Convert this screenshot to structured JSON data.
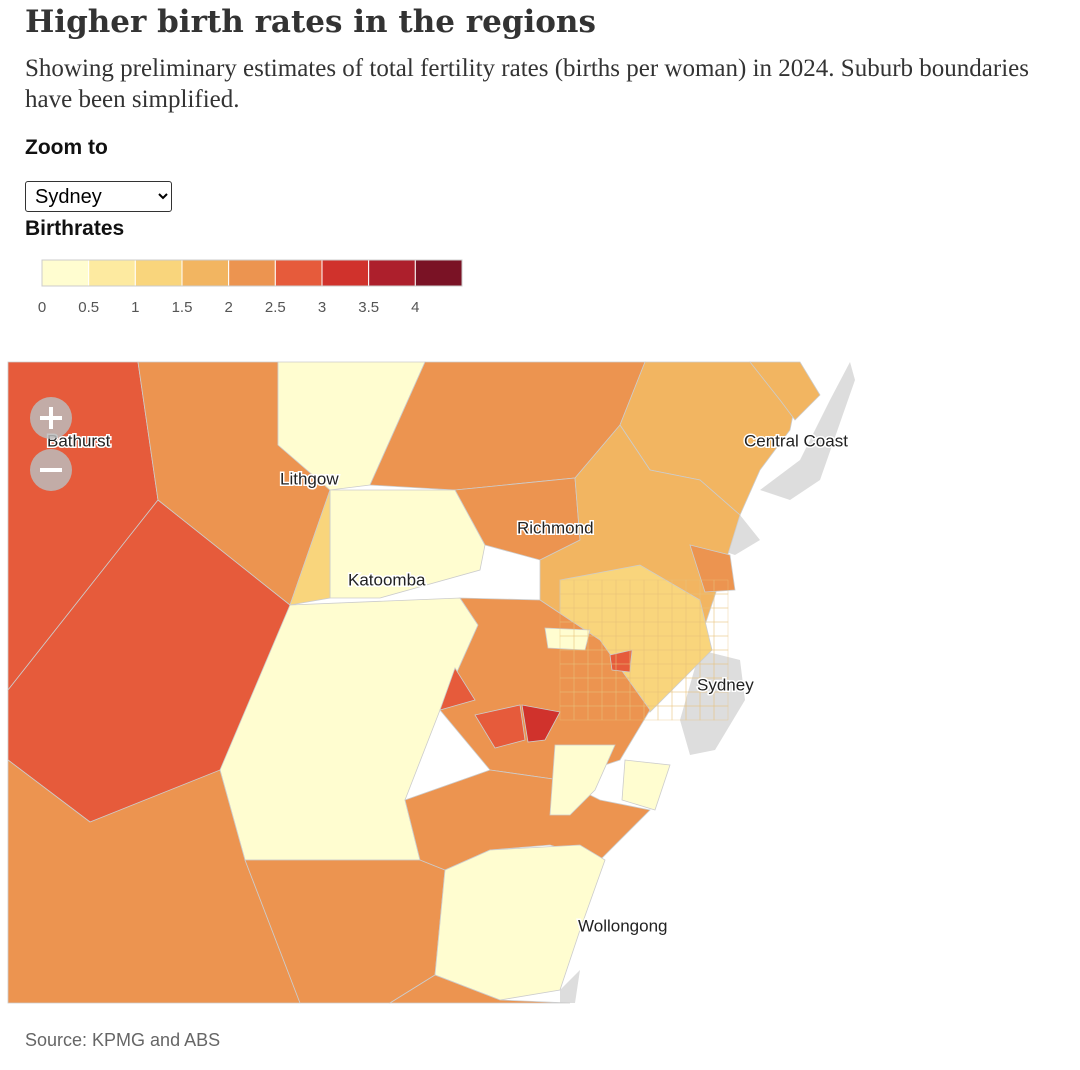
{
  "title": "Higher birth rates in the regions",
  "subtitle": "Showing preliminary estimates of total fertility rates (births per woman) in 2024. Suburb boundaries have been simplified.",
  "zoom": {
    "label": "Zoom to",
    "selected": "Sydney"
  },
  "legend": {
    "title": "Birthrates",
    "colors": [
      "#fffdd0",
      "#fdeaa0",
      "#f9d57c",
      "#f2b561",
      "#ec9450",
      "#e65b3b",
      "#d0322c",
      "#ad1f2c",
      "#7a1225"
    ],
    "xlim": [
      0,
      4.5
    ],
    "ticks": [
      0,
      0.5,
      1,
      1.5,
      2,
      2.5,
      3,
      3.5,
      4
    ]
  },
  "map": {
    "values": [
      2.75,
      2.75,
      2.25,
      0.25,
      2.25,
      1.75,
      0.25,
      1.25,
      0.25,
      2.25,
      2.25,
      2.25,
      1.75,
      1.25,
      2.25,
      2.25,
      0.25,
      2.25,
      2.75,
      2.75,
      3.25,
      0.25,
      0.25,
      2.25,
      1.75,
      2.75,
      0.25
    ],
    "places": [
      "Bathurst",
      "Lithgow",
      "Central Coast",
      "Richmond",
      "Katoomba",
      "Sydney",
      "Wollongong"
    ]
  },
  "source": "Source: KPMG and ABS"
}
